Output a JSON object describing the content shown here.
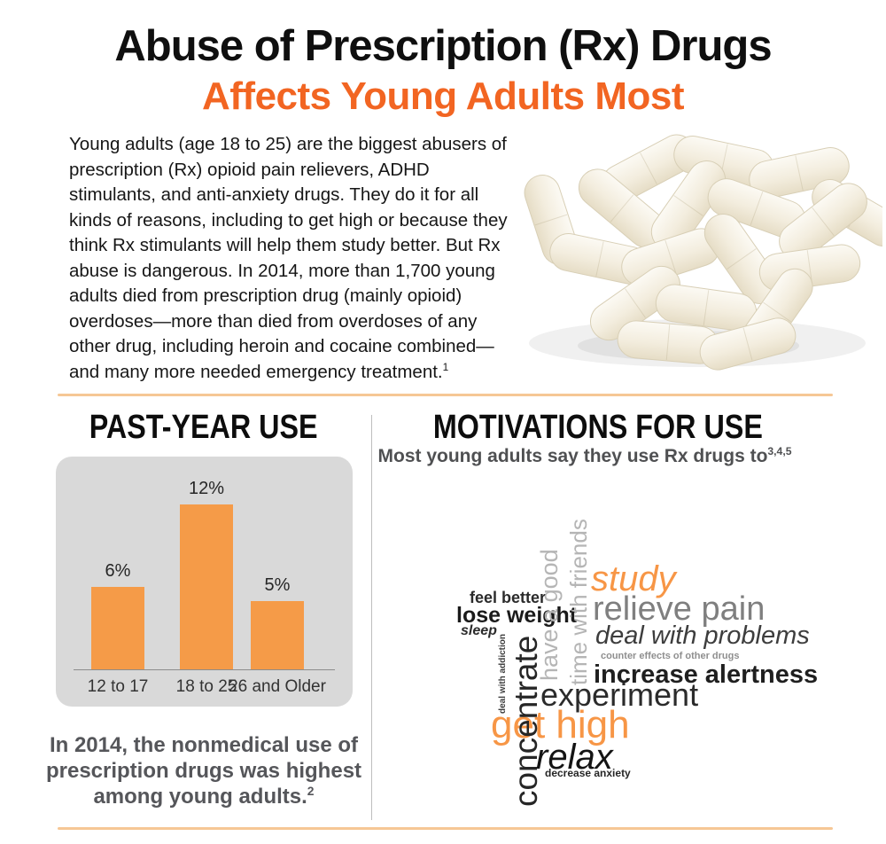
{
  "header": {
    "title": "Abuse of Prescription (Rx) Drugs",
    "subtitle": "Affects Young Adults Most"
  },
  "intro": {
    "text": "Young adults (age 18 to 25) are the biggest abusers of\nprescription (Rx) opioid pain relievers, ADHD\nstimulants, and anti-anxiety drugs. They do it for all\nkinds of reasons, including to get high or because they\nthink Rx stimulants will help them study better. But Rx\nabuse is dangerous. In 2014, more than 1,700 young\nadults died from prescription drug (mainly opioid)\noverdoses—more than died from overdoses of any\nother drug, including heroin and cocaine combined—\nand many more needed emergency treatment.",
    "footnote": "1"
  },
  "past_year_use": {
    "title": "PAST-YEAR USE",
    "caption": "In 2014, the nonmedical use of\nprescription drugs was highest\namong young adults.",
    "caption_footnote": "2"
  },
  "chart_data": {
    "type": "bar",
    "title": "PAST-YEAR USE",
    "categories": [
      "12 to 17",
      "18 to 25",
      "26 and Older"
    ],
    "values": [
      6,
      12,
      5
    ],
    "labels": [
      "6%",
      "12%",
      "5%"
    ],
    "unit": "percent past-year nonmedical use",
    "ylim": [
      0,
      13
    ],
    "grid": false,
    "legend": false,
    "bar_color": "#f59b48",
    "panel_color": "#d9d9d9"
  },
  "motivations": {
    "title": "MOTIVATIONS FOR USE",
    "subtitle": "Most young adults say they use Rx drugs to",
    "subtitle_footnotes": "3,4,5",
    "words": [
      {
        "text": "feel better",
        "color": "#2b2b2b"
      },
      {
        "text": "lose weight",
        "color": "#1a1a1a"
      },
      {
        "text": "sleep",
        "color": "#2b2b2b"
      },
      {
        "text": "deal with addiction",
        "color": "#3d3d3d"
      },
      {
        "text": "concentrate",
        "color": "#262626"
      },
      {
        "text": "have a good",
        "color": "#b5b5b5"
      },
      {
        "text": "time with friends",
        "color": "#b5b5b5"
      },
      {
        "text": "study",
        "color": "#f79646"
      },
      {
        "text": "relieve pain",
        "color": "#7f7f7f"
      },
      {
        "text": "deal with problems",
        "color": "#3d3d3d"
      },
      {
        "text": "counter effects of other drugs",
        "color": "#8f8f8f"
      },
      {
        "text": "increase alertness",
        "color": "#1f1f1f"
      },
      {
        "text": "experiment",
        "color": "#2b2b2b"
      },
      {
        "text": "get high",
        "color": "#f79646"
      },
      {
        "text": "relax",
        "color": "#141414"
      },
      {
        "text": "decrease anxiety",
        "color": "#262626"
      }
    ]
  },
  "colors": {
    "accent_orange": "#f26522",
    "divider_peach": "#f6c795",
    "column_divider_gray": "#bdbdbd",
    "caption_gray": "#55565a",
    "section_title_black": "#0d0d0d"
  }
}
